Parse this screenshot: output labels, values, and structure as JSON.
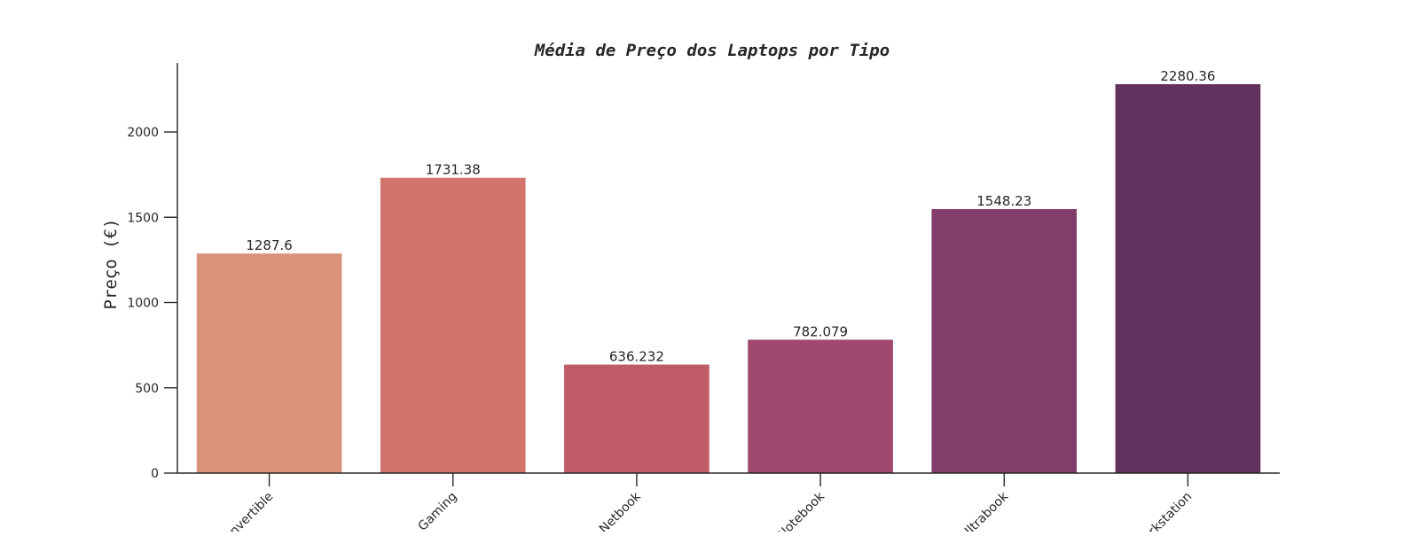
{
  "chart_data": {
    "type": "bar",
    "title": "Média de Preço dos Laptops por Tipo",
    "xlabel": "",
    "ylabel": "Preço (€)",
    "categories": [
      "Convertible",
      "Gaming",
      "Netbook",
      "Notebook",
      "Ultrabook",
      "Workstation"
    ],
    "values": [
      1287.6,
      1731.38,
      636.232,
      782.079,
      1548.23,
      2280.36
    ],
    "value_labels": [
      "1287.6",
      "1731.38",
      "636.232",
      "782.079",
      "1548.23",
      "2280.36"
    ],
    "colors": [
      "#d9937a",
      "#d0746c",
      "#c05b68",
      "#a0486e",
      "#833d6b",
      "#62315e"
    ],
    "ylim": [
      0,
      2400
    ],
    "yticks": [
      0,
      500,
      1000,
      1500,
      2000
    ],
    "grid": false,
    "legend": "none"
  }
}
